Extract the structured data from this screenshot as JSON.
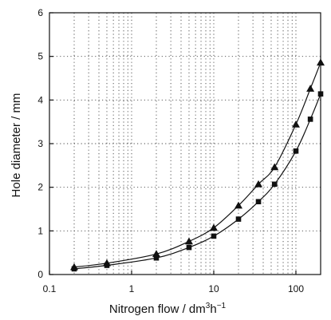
{
  "chart_data": {
    "type": "line",
    "xscale": "log",
    "xlim": [
      0.1,
      200
    ],
    "ylim": [
      0,
      6
    ],
    "xticks": [
      {
        "value": 0.1,
        "label": "0.1"
      },
      {
        "value": 1,
        "label": "1"
      },
      {
        "value": 10,
        "label": "10"
      },
      {
        "value": 100,
        "label": "100"
      }
    ],
    "yticks": [
      {
        "value": 0,
        "label": "0"
      },
      {
        "value": 1,
        "label": "1"
      },
      {
        "value": 2,
        "label": "2"
      },
      {
        "value": 3,
        "label": "3"
      },
      {
        "value": 4,
        "label": "4"
      },
      {
        "value": 5,
        "label": "5"
      },
      {
        "value": 6,
        "label": "6"
      }
    ],
    "xlabel": {
      "main": "Nitrogen flow / dm",
      "sup1": "3",
      "mid": "h",
      "sup2": "−1"
    },
    "ylabel": "Hole diameter / mm",
    "grid": true,
    "series": [
      {
        "marker": "triangle",
        "x": [
          0.2,
          0.5,
          2,
          5,
          10,
          20,
          35,
          55,
          100,
          150,
          200
        ],
        "y": [
          0.17,
          0.26,
          0.47,
          0.76,
          1.07,
          1.58,
          2.07,
          2.46,
          3.44,
          4.26,
          4.86
        ]
      },
      {
        "marker": "square",
        "x": [
          0.2,
          0.5,
          2,
          5,
          10,
          20,
          35,
          55,
          100,
          150,
          200
        ],
        "y": [
          0.13,
          0.21,
          0.38,
          0.62,
          0.88,
          1.27,
          1.67,
          2.07,
          2.83,
          3.56,
          4.14
        ]
      }
    ]
  }
}
